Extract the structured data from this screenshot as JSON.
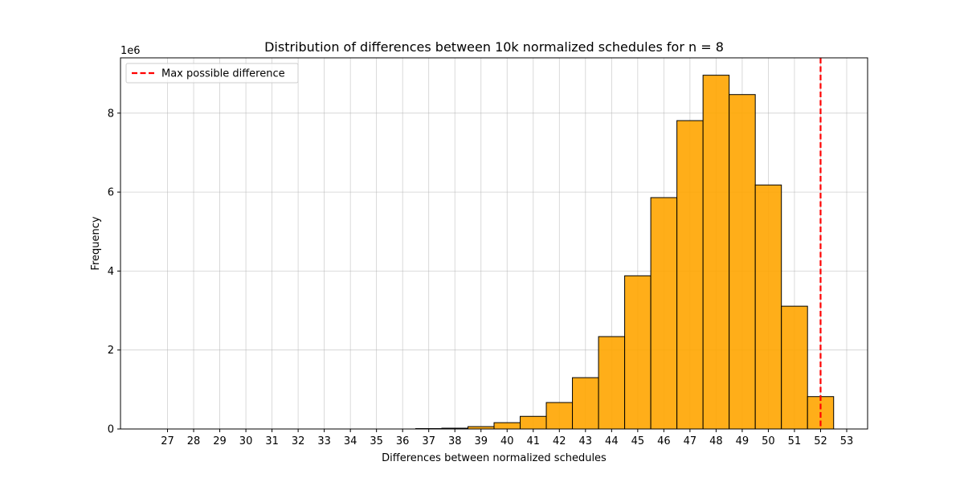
{
  "chart_data": {
    "type": "bar",
    "title": "Distribution of differences between 10k normalized schedules for n = 8",
    "xlabel": "Differences between normalized schedules",
    "ylabel": "Frequency",
    "y_offset_label": "1e6",
    "categories": [
      27,
      28,
      29,
      30,
      31,
      32,
      33,
      34,
      35,
      36,
      37,
      38,
      39,
      40,
      41,
      42,
      43,
      44,
      45,
      46,
      47,
      48,
      49,
      50,
      51,
      52
    ],
    "x_ticks": [
      27,
      28,
      29,
      30,
      31,
      32,
      33,
      34,
      35,
      36,
      37,
      38,
      39,
      40,
      41,
      42,
      43,
      44,
      45,
      46,
      47,
      48,
      49,
      50,
      51,
      52,
      53
    ],
    "values": [
      0,
      0,
      0,
      0,
      0,
      0,
      0,
      0,
      0,
      0,
      10000,
      20000,
      60000,
      160000,
      320000,
      670000,
      1300000,
      2340000,
      3880000,
      5860000,
      7810000,
      8960000,
      8470000,
      6180000,
      3110000,
      820000
    ],
    "y_ticks": [
      0,
      2000000,
      4000000,
      6000000,
      8000000
    ],
    "y_tick_labels": [
      "0",
      "2",
      "4",
      "6",
      "8"
    ],
    "ylim": [
      0,
      9400000
    ],
    "xlim": [
      25.2,
      53.8
    ],
    "bar_color": "#ffa500",
    "bar_edge_color": "#000000",
    "grid": true,
    "reference_line": {
      "x": 52,
      "label": "Max possible difference",
      "color": "#ff0000",
      "style": "dashed"
    },
    "legend": {
      "placement": "top-left",
      "entries": [
        "Max possible difference"
      ]
    }
  }
}
